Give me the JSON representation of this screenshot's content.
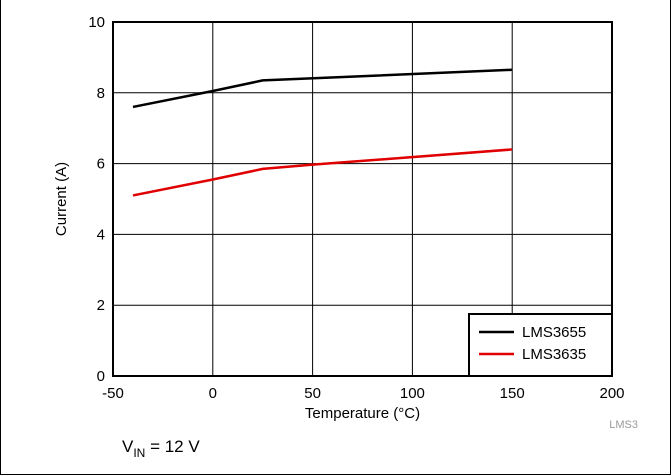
{
  "chart_data": {
    "type": "line",
    "title": "",
    "xlabel": "Temperature (°C)",
    "ylabel": "Current (A)",
    "xlim": [
      -50,
      200
    ],
    "ylim": [
      0,
      10
    ],
    "xticks": [
      -50,
      0,
      50,
      100,
      150,
      200
    ],
    "yticks": [
      0,
      2,
      4,
      6,
      8,
      10
    ],
    "xtick_labels": [
      "-50",
      "0",
      "50",
      "100",
      "150",
      "200"
    ],
    "ytick_labels": [
      "0",
      "2",
      "4",
      "6",
      "8",
      "10"
    ],
    "grid": true,
    "legend_position": "bottom-right",
    "series": [
      {
        "name": "LMS3655",
        "color": "#000000",
        "x": [
          -40,
          0,
          25,
          150
        ],
        "y": [
          7.6,
          8.05,
          8.35,
          8.65
        ]
      },
      {
        "name": "LMS3635",
        "color": "#e00000",
        "x": [
          -40,
          0,
          25,
          50,
          150
        ],
        "y": [
          5.1,
          5.55,
          5.85,
          5.97,
          6.4
        ]
      }
    ]
  },
  "condition": {
    "prefix": "V",
    "subscript": "IN",
    "suffix": " = 12 V"
  },
  "footnote": "LMS3"
}
